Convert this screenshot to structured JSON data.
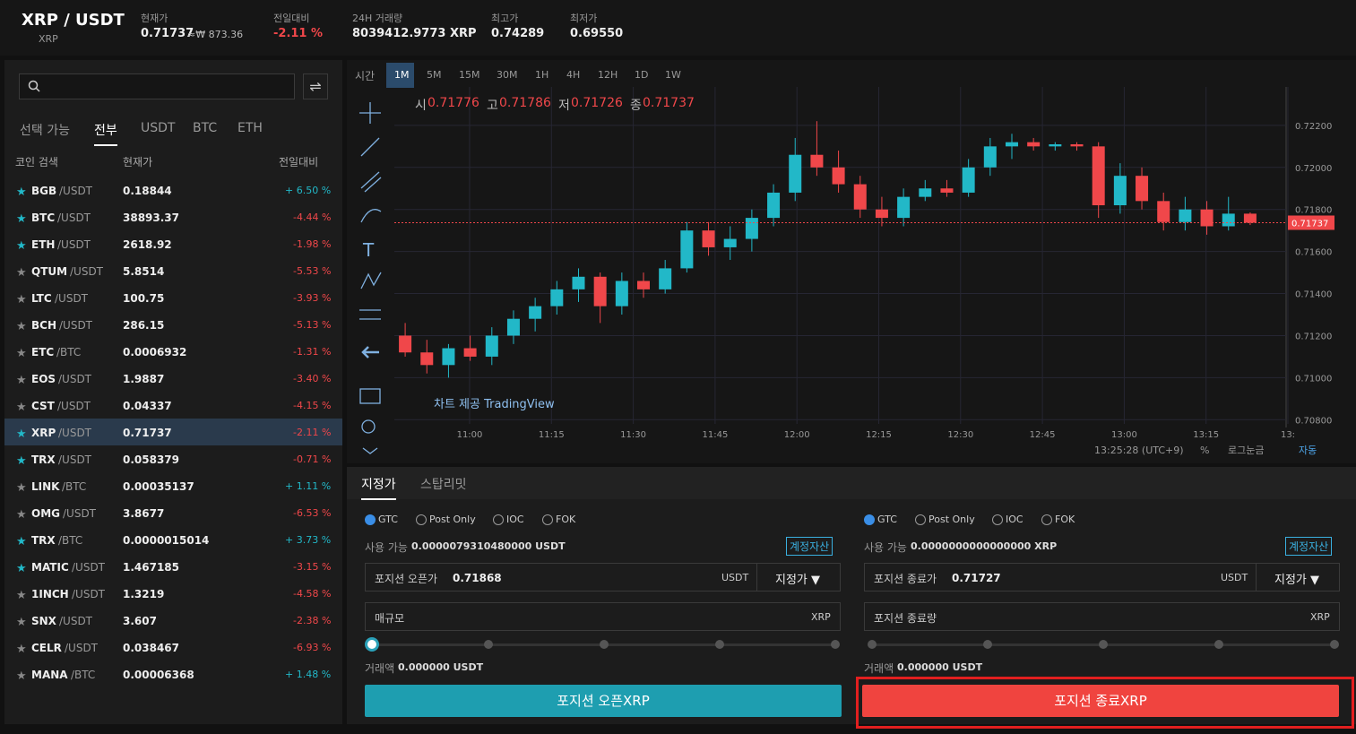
{
  "header": {
    "pair": "XRP / USDT",
    "sub": "XRP",
    "stats": [
      {
        "label": "현재가",
        "value": "0.71737",
        "extra": "≈₩ 873.36"
      },
      {
        "label": "전일대비",
        "value": "-2.11 %"
      },
      {
        "label": "24H 거래량",
        "value": "8039412.9773 XRP"
      },
      {
        "label": "최고가",
        "value": "0.74289"
      },
      {
        "label": "최저가",
        "value": "0.69550"
      }
    ]
  },
  "market": {
    "tabs": [
      "선택 가능",
      "전부",
      "USDT",
      "BTC",
      "ETH"
    ],
    "columns": [
      "코인 검색",
      "현재가",
      "전일대비"
    ],
    "rows": [
      {
        "symbol": "BGB",
        "quote": "/USDT",
        "price": "0.18844",
        "change": "+ 6.50 %"
      },
      {
        "symbol": "BTC",
        "quote": "/USDT",
        "price": "38893.37",
        "change": "-4.44 %"
      },
      {
        "symbol": "ETH",
        "quote": "/USDT",
        "price": "2618.92",
        "change": "-1.98 %"
      },
      {
        "symbol": "QTUM",
        "quote": "/USDT",
        "price": "5.8514",
        "change": "-5.53 %"
      },
      {
        "symbol": "LTC",
        "quote": "/USDT",
        "price": "100.75",
        "change": "-3.93 %"
      },
      {
        "symbol": "BCH",
        "quote": "/USDT",
        "price": "286.15",
        "change": "-5.13 %"
      },
      {
        "symbol": "ETC",
        "quote": "/BTC",
        "price": "0.0006932",
        "change": "-1.31 %"
      },
      {
        "symbol": "EOS",
        "quote": "/USDT",
        "price": "1.9887",
        "change": "-3.40 %"
      },
      {
        "symbol": "CST",
        "quote": "/USDT",
        "price": "0.04337",
        "change": "-4.15 %"
      },
      {
        "symbol": "XRP",
        "quote": "/USDT",
        "price": "0.71737",
        "change": "-2.11 %"
      },
      {
        "symbol": "TRX",
        "quote": "/USDT",
        "price": "0.058379",
        "change": "-0.71 %"
      },
      {
        "symbol": "LINK",
        "quote": "/BTC",
        "price": "0.00035137",
        "change": "+ 1.11 %"
      },
      {
        "symbol": "OMG",
        "quote": "/USDT",
        "price": "3.8677",
        "change": "-6.53 %"
      },
      {
        "symbol": "TRX",
        "quote": "/BTC",
        "price": "0.0000015014",
        "change": "+ 3.73 %"
      },
      {
        "symbol": "MATIC",
        "quote": "/USDT",
        "price": "1.467185",
        "change": "-3.15 %"
      },
      {
        "symbol": "1INCH",
        "quote": "/USDT",
        "price": "1.3219",
        "change": "-4.58 %"
      },
      {
        "symbol": "SNX",
        "quote": "/USDT",
        "price": "3.607",
        "change": "-2.38 %"
      },
      {
        "symbol": "CELR",
        "quote": "/USDT",
        "price": "0.038467",
        "change": "-6.93 %"
      },
      {
        "symbol": "MANA",
        "quote": "/BTC",
        "price": "0.00006368",
        "change": "+ 1.48 %"
      }
    ]
  },
  "chart": {
    "time_label": "시간",
    "intervals": [
      "1M",
      "5M",
      "15M",
      "30M",
      "1H",
      "4H",
      "12H",
      "1D",
      "1W"
    ],
    "legend": [
      "시",
      "0.71776",
      "고",
      "0.71786",
      "저",
      "0.71726",
      "종",
      "0.71737"
    ],
    "watermark": "차트 제공 TradingView",
    "price_label": "0.71737",
    "ylim": [
      0.7078,
      0.7237
    ],
    "yticks": [
      {
        "value": 0.722,
        "label": "0.72200"
      },
      {
        "value": 0.72,
        "label": "0.72000"
      },
      {
        "value": 0.718,
        "label": "0.71800"
      },
      {
        "value": 0.716,
        "label": "0.71600"
      },
      {
        "value": 0.714,
        "label": "0.71400"
      },
      {
        "value": 0.712,
        "label": "0.71200"
      },
      {
        "value": 0.71,
        "label": "0.71000"
      },
      {
        "value": 0.708,
        "label": "0.70800"
      }
    ],
    "xticks": [
      "11:00",
      "11:15",
      "11:30",
      "11:45",
      "12:00",
      "12:15",
      "12:30",
      "12:45",
      "13:00",
      "13:15",
      "13:"
    ],
    "footer": [
      "13:25:28 (UTC+9)",
      "%",
      "로그눈금",
      "자동"
    ],
    "candles": [
      [
        0.712,
        0.7126,
        0.711,
        0.7112
      ],
      [
        0.7112,
        0.7118,
        0.7102,
        0.7106
      ],
      [
        0.7106,
        0.7116,
        0.71,
        0.7114
      ],
      [
        0.7114,
        0.712,
        0.7108,
        0.711
      ],
      [
        0.711,
        0.7124,
        0.7106,
        0.712
      ],
      [
        0.712,
        0.7132,
        0.7116,
        0.7128
      ],
      [
        0.7128,
        0.7138,
        0.7122,
        0.7134
      ],
      [
        0.7134,
        0.7146,
        0.713,
        0.7142
      ],
      [
        0.7142,
        0.7152,
        0.7136,
        0.7148
      ],
      [
        0.7148,
        0.715,
        0.7126,
        0.7134
      ],
      [
        0.7134,
        0.715,
        0.713,
        0.7146
      ],
      [
        0.7146,
        0.715,
        0.7138,
        0.7142
      ],
      [
        0.7142,
        0.7156,
        0.714,
        0.7152
      ],
      [
        0.7152,
        0.7174,
        0.715,
        0.717
      ],
      [
        0.717,
        0.7174,
        0.7158,
        0.7162
      ],
      [
        0.7162,
        0.7172,
        0.7156,
        0.7166
      ],
      [
        0.7166,
        0.718,
        0.716,
        0.7176
      ],
      [
        0.7176,
        0.7192,
        0.7172,
        0.7188
      ],
      [
        0.7188,
        0.7214,
        0.7184,
        0.7206
      ],
      [
        0.7206,
        0.7222,
        0.7196,
        0.72
      ],
      [
        0.72,
        0.7208,
        0.7188,
        0.7192
      ],
      [
        0.7192,
        0.7196,
        0.7176,
        0.718
      ],
      [
        0.718,
        0.7186,
        0.7172,
        0.7176
      ],
      [
        0.7176,
        0.719,
        0.7172,
        0.7186
      ],
      [
        0.7186,
        0.7194,
        0.7184,
        0.719
      ],
      [
        0.719,
        0.7194,
        0.7186,
        0.7188
      ],
      [
        0.7188,
        0.7204,
        0.7186,
        0.72
      ],
      [
        0.72,
        0.7214,
        0.7196,
        0.721
      ],
      [
        0.721,
        0.7216,
        0.7204,
        0.7212
      ],
      [
        0.7212,
        0.7214,
        0.7208,
        0.721
      ],
      [
        0.721,
        0.7212,
        0.7208,
        0.7211
      ],
      [
        0.7211,
        0.7212,
        0.7208,
        0.721
      ],
      [
        0.721,
        0.7212,
        0.7176,
        0.7182
      ],
      [
        0.7182,
        0.7202,
        0.7178,
        0.7196
      ],
      [
        0.7196,
        0.72,
        0.718,
        0.7184
      ],
      [
        0.7184,
        0.7188,
        0.717,
        0.7174
      ],
      [
        0.7174,
        0.7186,
        0.717,
        0.718
      ],
      [
        0.718,
        0.7184,
        0.7168,
        0.7172
      ],
      [
        0.7172,
        0.7186,
        0.717,
        0.7178
      ],
      [
        0.7178,
        0.71786,
        0.71726,
        0.71737
      ]
    ]
  },
  "order": {
    "tabs": [
      "지정가",
      "스탑리밋"
    ],
    "left": {
      "options": [
        "GTC",
        "Post Only",
        "IOC",
        "FOK"
      ],
      "available_label": "사용 가능",
      "available": "0.0000079310480000 USDT",
      "asset": "계정자산",
      "price_label": "포지션 오픈가",
      "price": "0.71868",
      "unit": "USDT",
      "type": "지정가",
      "amount_label": "매규모",
      "amount_unit": "XRP",
      "total_label": "거래액",
      "total": "0.000000 USDT",
      "button": "포지션 오픈XRP"
    },
    "right": {
      "options": [
        "GTC",
        "Post Only",
        "IOC",
        "FOK"
      ],
      "available_label": "사용 가능",
      "available": "0.0000000000000000 XRP",
      "asset": "계정자산",
      "price_label": "포지션 종료가",
      "price": "0.71727",
      "unit": "USDT",
      "type": "지정가",
      "amount_label": "포지션 종료량",
      "amount_unit": "XRP",
      "total_label": "거래액",
      "total": "0.000000 USDT",
      "button": "포지션 종료XRP"
    }
  }
}
